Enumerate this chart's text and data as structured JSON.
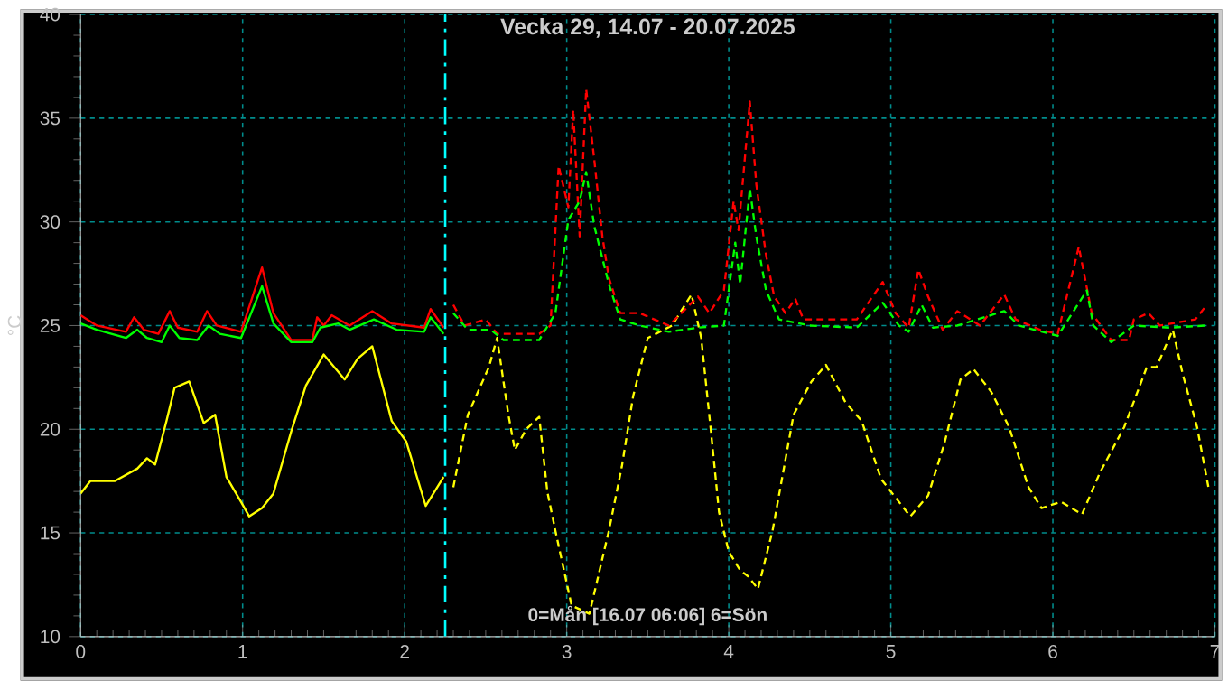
{
  "chart_data": {
    "type": "line",
    "title": "Vecka 29, 14.07 - 20.07.2025",
    "ylabel": "°C",
    "annotations": [
      "0=Mån [16.07 06:06] 6=Sön"
    ],
    "xlim": [
      0,
      7
    ],
    "xticks": [
      0,
      1,
      2,
      3,
      4,
      5,
      6,
      7
    ],
    "ylim": [
      10,
      40
    ],
    "yticks": [
      10,
      15,
      20,
      25,
      30,
      35,
      40
    ],
    "grid": true,
    "ref_lines": [
      {
        "axis": "x",
        "value": 2.25,
        "color": "#00ffff",
        "line_style": "dashed"
      }
    ],
    "series": [
      {
        "color": "#ffff00",
        "line_style": "solid",
        "x": [
          0,
          0.06,
          0.21,
          0.35,
          0.41,
          0.46,
          0.53,
          0.58,
          0.67,
          0.76,
          0.83,
          0.9,
          0.99,
          1.04,
          1.12,
          1.19,
          1.3,
          1.39,
          1.5,
          1.63,
          1.71,
          1.8,
          1.92,
          2.01,
          2.13,
          2.24
        ],
        "values": [
          16.9,
          17.5,
          17.5,
          18.1,
          18.6,
          18.3,
          20.4,
          22.0,
          22.3,
          20.3,
          20.7,
          17.7,
          16.5,
          15.8,
          16.2,
          16.9,
          19.9,
          22.1,
          23.6,
          22.4,
          23.4,
          24.0,
          20.4,
          19.4,
          16.3,
          17.7
        ]
      },
      {
        "color": "#ffff00",
        "line_style": "dashed",
        "x": [
          2.3,
          2.39,
          2.52,
          2.57,
          2.64,
          2.68,
          2.75,
          2.83,
          2.88,
          2.93,
          3.03,
          3.14,
          3.26,
          3.34,
          3.41,
          3.5,
          3.65,
          3.77,
          3.83,
          3.89,
          3.94,
          4.0,
          4.07,
          4.12,
          4.18,
          4.27,
          4.4,
          4.51,
          4.6,
          4.72,
          4.82,
          4.94,
          5.12,
          5.23,
          5.33,
          5.43,
          5.51,
          5.62,
          5.73,
          5.85,
          5.93,
          6.05,
          6.18,
          6.29,
          6.44,
          6.58,
          6.64,
          6.74,
          6.8,
          6.89,
          6.96
        ],
        "values": [
          17.2,
          20.7,
          23.0,
          24.4,
          20.7,
          19.0,
          20.0,
          20.6,
          17.0,
          15.1,
          11.5,
          11.1,
          15.1,
          18.2,
          21.6,
          24.4,
          25.0,
          26.5,
          24.4,
          19.9,
          16.0,
          14.1,
          13.2,
          12.9,
          12.3,
          15.1,
          20.7,
          22.3,
          23.1,
          21.3,
          20.4,
          17.6,
          15.8,
          16.8,
          19.3,
          22.4,
          22.9,
          21.8,
          20.1,
          17.2,
          16.2,
          16.5,
          15.9,
          17.9,
          20.1,
          23.0,
          23.0,
          24.8,
          22.7,
          20.1,
          17.2
        ]
      },
      {
        "color": "#ff0000",
        "line_style": "solid",
        "x": [
          0,
          0.1,
          0.28,
          0.33,
          0.39,
          0.48,
          0.55,
          0.6,
          0.72,
          0.78,
          0.84,
          0.99,
          1.12,
          1.19,
          1.3,
          1.43,
          1.46,
          1.5,
          1.55,
          1.66,
          1.8,
          1.92,
          2.12,
          2.16,
          2.24
        ],
        "values": [
          25.5,
          25.0,
          24.7,
          25.4,
          24.8,
          24.6,
          25.7,
          24.9,
          24.7,
          25.7,
          25.0,
          24.7,
          27.8,
          25.6,
          24.3,
          24.3,
          25.4,
          25.0,
          25.5,
          25.0,
          25.7,
          25.1,
          24.9,
          25.8,
          24.9
        ]
      },
      {
        "color": "#00ff00",
        "line_style": "solid",
        "x": [
          0,
          0.1,
          0.28,
          0.35,
          0.41,
          0.5,
          0.55,
          0.61,
          0.72,
          0.79,
          0.86,
          0.99,
          1.12,
          1.19,
          1.3,
          1.43,
          1.48,
          1.59,
          1.66,
          1.81,
          1.95,
          2.12,
          2.16,
          2.24
        ],
        "values": [
          25.1,
          24.8,
          24.4,
          24.8,
          24.4,
          24.2,
          25.0,
          24.4,
          24.3,
          25.0,
          24.6,
          24.4,
          26.9,
          25.1,
          24.2,
          24.2,
          24.9,
          25.1,
          24.8,
          25.3,
          24.8,
          24.7,
          25.4,
          24.6
        ]
      },
      {
        "color": "#ff0000",
        "line_style": "dashed",
        "x": [
          2.3,
          2.37,
          2.5,
          2.57,
          2.83,
          2.9,
          2.95,
          3.01,
          3.04,
          3.08,
          3.12,
          3.17,
          3.22,
          3.26,
          3.33,
          3.45,
          3.63,
          3.81,
          3.88,
          3.97,
          4.03,
          4.06,
          4.13,
          4.17,
          4.23,
          4.28,
          4.35,
          4.41,
          4.46,
          4.79,
          4.95,
          5.03,
          5.11,
          5.17,
          5.23,
          5.32,
          5.41,
          5.55,
          5.7,
          5.77,
          5.92,
          6.03,
          6.16,
          6.24,
          6.36,
          6.47,
          6.5,
          6.59,
          6.66,
          6.88,
          6.94
        ],
        "values": [
          26.0,
          25.0,
          25.3,
          24.6,
          24.6,
          25.0,
          32.7,
          30.7,
          35.4,
          29.3,
          36.4,
          33.0,
          29.3,
          27.3,
          25.6,
          25.6,
          25.0,
          26.4,
          25.6,
          26.7,
          31.0,
          29.6,
          35.8,
          31.8,
          28.4,
          26.4,
          25.6,
          26.3,
          25.3,
          25.3,
          27.1,
          25.6,
          24.9,
          27.7,
          26.4,
          24.8,
          25.7,
          25.0,
          26.5,
          25.3,
          24.8,
          24.6,
          28.8,
          25.6,
          24.3,
          24.3,
          25.3,
          25.6,
          25.0,
          25.3,
          25.9
        ]
      },
      {
        "color": "#00ff00",
        "line_style": "dashed",
        "x": [
          2.3,
          2.39,
          2.53,
          2.61,
          2.83,
          2.93,
          3.01,
          3.08,
          3.12,
          3.17,
          3.26,
          3.33,
          3.45,
          3.63,
          3.81,
          3.97,
          4.04,
          4.07,
          4.13,
          4.17,
          4.23,
          4.31,
          4.5,
          4.79,
          4.95,
          5.05,
          5.11,
          5.19,
          5.26,
          5.41,
          5.7,
          5.79,
          6.03,
          6.21,
          6.25,
          6.36,
          6.5,
          6.72,
          6.94
        ],
        "values": [
          25.6,
          24.8,
          24.8,
          24.3,
          24.3,
          25.6,
          30.1,
          31.0,
          32.4,
          29.8,
          27.0,
          25.3,
          25.0,
          24.7,
          24.9,
          25.0,
          29.0,
          27.0,
          31.6,
          29.3,
          26.7,
          25.3,
          25.0,
          24.9,
          26.1,
          25.0,
          24.7,
          26.0,
          24.9,
          25.0,
          25.7,
          25.0,
          24.5,
          26.7,
          25.0,
          24.2,
          25.0,
          24.9,
          25.0
        ]
      }
    ]
  }
}
